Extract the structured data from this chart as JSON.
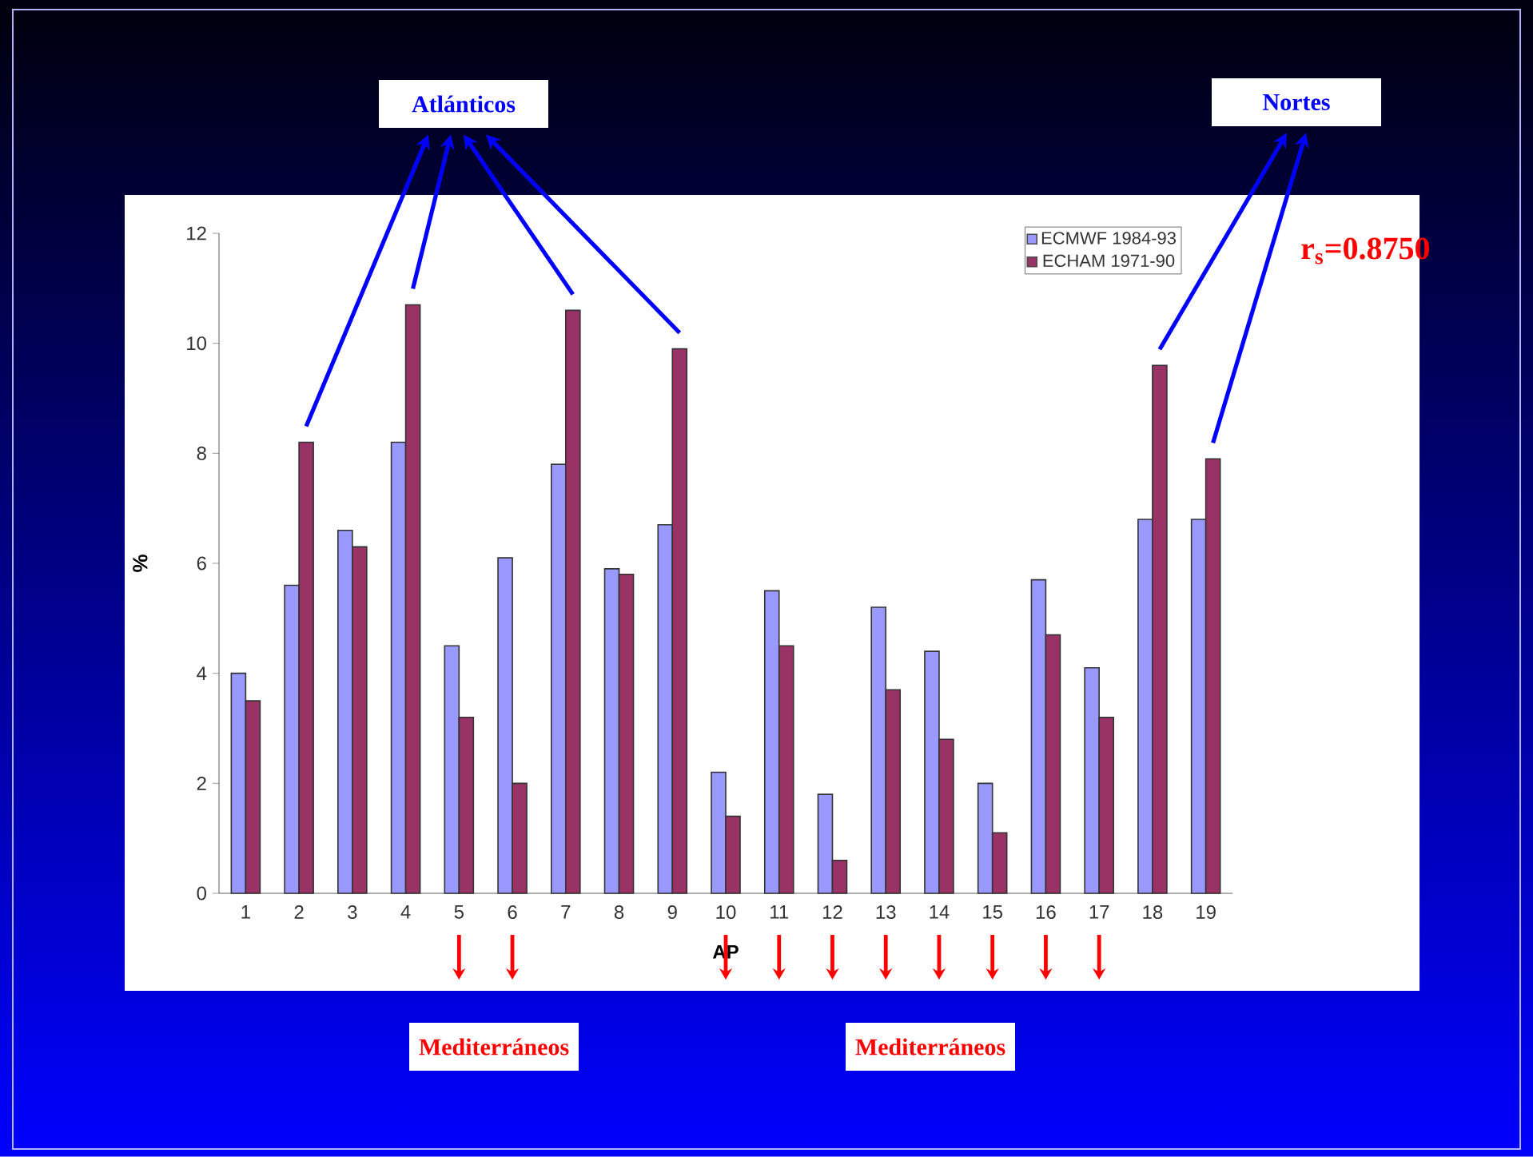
{
  "chart_data": {
    "type": "bar",
    "xlabel": "AP",
    "ylabel": "%",
    "categories": [
      "1",
      "2",
      "3",
      "4",
      "5",
      "6",
      "7",
      "8",
      "9",
      "10",
      "11",
      "12",
      "13",
      "14",
      "15",
      "16",
      "17",
      "18",
      "19"
    ],
    "series": [
      {
        "name": "ECMWF 1984-93",
        "color": "#9999ff",
        "values": [
          4.0,
          5.6,
          6.6,
          8.2,
          4.5,
          6.1,
          7.8,
          5.9,
          6.7,
          2.2,
          5.5,
          1.8,
          5.2,
          4.4,
          2.0,
          5.7,
          4.1,
          6.8,
          6.8
        ]
      },
      {
        "name": "ECHAM 1971-90",
        "color": "#993366",
        "values": [
          3.5,
          8.2,
          6.3,
          10.7,
          3.2,
          2.0,
          10.6,
          5.8,
          9.9,
          1.4,
          4.5,
          0.6,
          3.7,
          2.8,
          1.1,
          4.7,
          3.2,
          9.6,
          7.9
        ]
      }
    ],
    "ylim": [
      0,
      12
    ],
    "yticks": [
      0,
      2,
      4,
      6,
      8,
      10,
      12
    ],
    "legend": "top right",
    "annotations": [
      "Atlánticos",
      "Nortes",
      "Mediterráneos",
      "Mediterráneos",
      "r$_{s}$=0.8750"
    ]
  }
}
